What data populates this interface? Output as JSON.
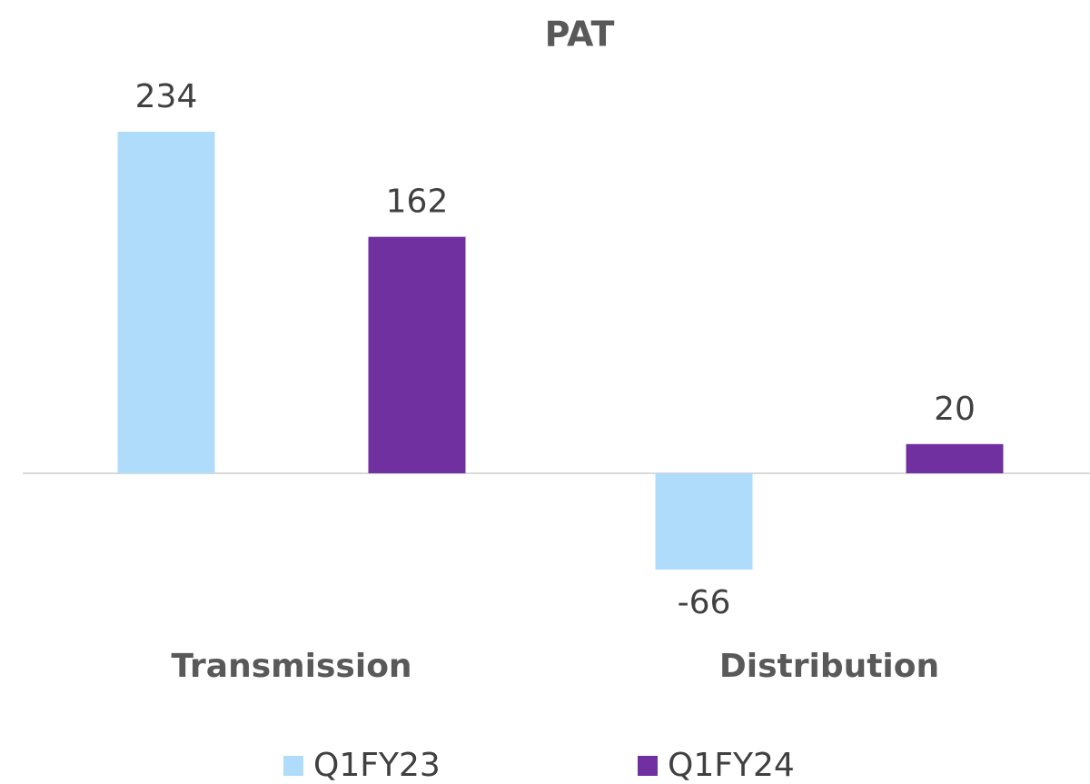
{
  "chart_data": {
    "type": "bar",
    "title": "PAT",
    "categories": [
      "Transmission",
      "Distribution"
    ],
    "series": [
      {
        "name": "Q1FY23",
        "color": "#b0dcfc",
        "values": [
          234,
          -66
        ]
      },
      {
        "name": "Q1FY24",
        "color": "#7030a0",
        "values": [
          162,
          20
        ]
      }
    ]
  }
}
